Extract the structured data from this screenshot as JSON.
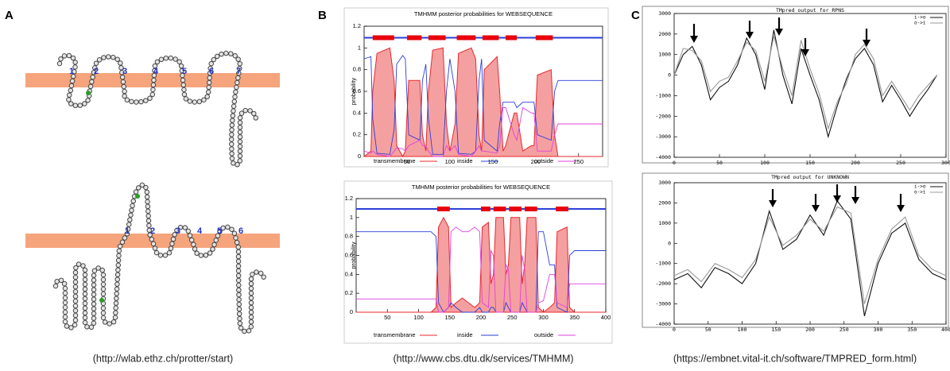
{
  "panels": {
    "A": {
      "label": "A",
      "caption": "(http://wlab.ethz.ch/protter/start)",
      "top_helices": [
        "1",
        "2",
        "3",
        "4",
        "5",
        "6",
        "7"
      ],
      "bottom_helices": [
        "1",
        "2",
        "3",
        "4",
        "5",
        "6"
      ]
    },
    "B": {
      "label": "B",
      "caption": "(http://www.cbs.dtu.dk/services/TMHMM)"
    },
    "C": {
      "label": "C",
      "caption": "(https://embnet.vital-it.ch/software/TMPRED_form.html)"
    }
  },
  "chart_data": [
    {
      "type": "line",
      "title": "TMHMM posterior probabilities for WEBSEQUENCE",
      "y_label": "probability",
      "legend": "bottom",
      "xlim": [
        0,
        278
      ],
      "xticks": [
        50,
        100,
        150,
        200,
        250
      ],
      "ylim": [
        0,
        1.2
      ],
      "yticks": [
        0,
        0.2,
        0.4,
        0.6,
        0.8,
        1,
        1.2
      ],
      "topology": [
        [
          10,
          35
        ],
        [
          50,
          67
        ],
        [
          75,
          95
        ],
        [
          108,
          130
        ],
        [
          138,
          157
        ],
        [
          165,
          178
        ],
        [
          200,
          220
        ]
      ],
      "x": [
        0,
        8,
        10,
        15,
        30,
        35,
        38,
        45,
        48,
        52,
        65,
        68,
        72,
        75,
        80,
        92,
        96,
        100,
        106,
        110,
        125,
        130,
        134,
        137,
        140,
        155,
        158,
        162,
        165,
        175,
        178,
        185,
        195,
        198,
        202,
        218,
        222,
        226,
        250,
        278
      ],
      "series": [
        {
          "name": "transmembrane",
          "color": "#e8282c",
          "filled": true,
          "values": [
            0,
            0.05,
            0.6,
            0.95,
            1.0,
            0.7,
            0.1,
            0,
            0.05,
            0.7,
            0.7,
            0.2,
            0.05,
            0.6,
            0.98,
            1.0,
            0.3,
            0.05,
            0.3,
            0.95,
            1.0,
            0.9,
            0.2,
            0.05,
            0.8,
            0.92,
            0.6,
            0.05,
            0.1,
            0.4,
            0.4,
            0.05,
            0.1,
            0.1,
            0.75,
            0.8,
            0.2,
            0,
            0,
            0
          ]
        },
        {
          "name": "inside",
          "color": "#2a3fd8",
          "values": [
            0.9,
            0.92,
            0.35,
            0.03,
            0.02,
            0.25,
            0.85,
            0.93,
            0.9,
            0.2,
            0.15,
            0.7,
            0.85,
            0.35,
            0.02,
            0.02,
            0.6,
            0.9,
            0.6,
            0.03,
            0.02,
            0.05,
            0.7,
            0.9,
            0.15,
            0.05,
            0.3,
            0.5,
            0.5,
            0.5,
            0.45,
            0.5,
            0.5,
            0.5,
            0.2,
            0.15,
            0.6,
            0.7,
            0.7,
            0.7
          ]
        },
        {
          "name": "outside",
          "color": "#e040e0",
          "values": [
            0.05,
            0.03,
            0.05,
            0.02,
            0,
            0.05,
            0.08,
            0.07,
            0.05,
            0.1,
            0.15,
            0.1,
            0.1,
            0.05,
            0,
            0,
            0.1,
            0.05,
            0.1,
            0.02,
            0,
            0.05,
            0.1,
            0.05,
            0.05,
            0.03,
            0.1,
            0.45,
            0.45,
            0.2,
            0.15,
            0.45,
            0.4,
            0.4,
            0.05,
            0.05,
            0.2,
            0.3,
            0.3,
            0.3
          ]
        }
      ]
    },
    {
      "type": "line",
      "title": "TMHMM posterior probabilities for WEBSEQUENCE",
      "y_label": "probability",
      "legend": "bottom",
      "xlim": [
        0,
        400
      ],
      "xticks": [
        50,
        100,
        150,
        200,
        250,
        300,
        350,
        400
      ],
      "ylim": [
        0,
        1.2
      ],
      "yticks": [
        0,
        0.2,
        0.4,
        0.6,
        0.8,
        1,
        1.2
      ],
      "topology": [
        [
          130,
          150
        ],
        [
          200,
          215
        ],
        [
          220,
          240
        ],
        [
          245,
          265
        ],
        [
          270,
          290
        ],
        [
          320,
          340
        ]
      ],
      "x": [
        0,
        50,
        100,
        120,
        128,
        132,
        140,
        148,
        152,
        160,
        170,
        180,
        190,
        198,
        202,
        212,
        216,
        220,
        224,
        236,
        240,
        244,
        248,
        262,
        266,
        270,
        274,
        288,
        292,
        300,
        310,
        318,
        322,
        338,
        342,
        350,
        400
      ],
      "series": [
        {
          "name": "transmembrane",
          "color": "#e8282c",
          "filled": true,
          "values": [
            0,
            0,
            0,
            0,
            0.05,
            0.9,
            1.0,
            0.9,
            0.05,
            0.1,
            0.15,
            0.1,
            0.05,
            0.1,
            0.9,
            0.95,
            0.3,
            0.4,
            1.0,
            1.0,
            0.4,
            0.5,
            1.0,
            1.0,
            0.3,
            0.5,
            1.0,
            1.0,
            0.05,
            0,
            0.05,
            0.1,
            0.85,
            0.9,
            0.05,
            0,
            0
          ]
        },
        {
          "name": "inside",
          "color": "#2a3fd8",
          "values": [
            0.85,
            0.85,
            0.85,
            0.85,
            0.8,
            0.1,
            0,
            0.05,
            0.1,
            0.05,
            0,
            0,
            0,
            0.05,
            0,
            0,
            0.05,
            0.05,
            0,
            0,
            0.1,
            0.05,
            0,
            0,
            0.1,
            0.05,
            0,
            0,
            0.85,
            0.85,
            0.5,
            0.5,
            0.05,
            0,
            0.6,
            0.65,
            0.65
          ]
        },
        {
          "name": "outside",
          "color": "#e040e0",
          "values": [
            0.14,
            0.14,
            0.14,
            0.14,
            0.14,
            0,
            0,
            0.05,
            0.85,
            0.9,
            0.85,
            0.85,
            0.9,
            0.85,
            0.1,
            0.05,
            0.65,
            0.6,
            0,
            0,
            0.5,
            0.45,
            0,
            0,
            0.6,
            0.45,
            0,
            0,
            0.1,
            0.12,
            0.4,
            0.4,
            0.1,
            0.05,
            0.3,
            0.3,
            0.3
          ]
        }
      ]
    },
    {
      "type": "line",
      "title": "TMpred output for RPNS",
      "legend": "upper right",
      "xlim": [
        0,
        300
      ],
      "xticks": [
        0,
        50,
        100,
        150,
        200,
        250,
        300
      ],
      "ylim": [
        -4000,
        3000
      ],
      "yticks": [
        -4000,
        -3000,
        -2000,
        -1000,
        0,
        1000,
        2000,
        3000
      ],
      "x": [
        0,
        10,
        20,
        30,
        40,
        50,
        60,
        70,
        80,
        90,
        100,
        110,
        120,
        130,
        140,
        150,
        160,
        170,
        180,
        190,
        200,
        210,
        220,
        230,
        240,
        250,
        260,
        270,
        280,
        290
      ],
      "series": [
        {
          "name": "i->o",
          "color": "#111111",
          "values": [
            0,
            1000,
            1400,
            500,
            -1200,
            -600,
            -300,
            500,
            1800,
            1000,
            -700,
            2200,
            0,
            -1400,
            1300,
            0,
            -1200,
            -3000,
            -1500,
            -200,
            800,
            1300,
            500,
            -1300,
            -500,
            -1200,
            -2000,
            -1300,
            -700,
            0
          ]
        },
        {
          "name": "o->i",
          "color": "#999999",
          "values": [
            0,
            1300,
            1200,
            700,
            -800,
            -300,
            -100,
            700,
            1600,
            1200,
            -300,
            1900,
            300,
            -1000,
            1700,
            300,
            -900,
            -2600,
            -1300,
            -400,
            1000,
            1500,
            800,
            -1000,
            -300,
            -1000,
            -1700,
            -1000,
            -500,
            0
          ]
        }
      ]
    },
    {
      "type": "line",
      "title": "TMpred output for UNKNOWN",
      "legend": "upper right",
      "xlim": [
        0,
        400
      ],
      "xticks": [
        0,
        50,
        100,
        150,
        200,
        250,
        300,
        350,
        400
      ],
      "ylim": [
        -4000,
        3000
      ],
      "yticks": [
        -4000,
        -3000,
        -2000,
        -1000,
        0,
        1000,
        2000,
        3000
      ],
      "x": [
        0,
        20,
        40,
        60,
        80,
        100,
        120,
        140,
        160,
        180,
        200,
        220,
        240,
        260,
        280,
        300,
        320,
        340,
        360,
        380,
        400
      ],
      "series": [
        {
          "name": "i->o",
          "color": "#111111",
          "values": [
            -1800,
            -1500,
            -2200,
            -1200,
            -1500,
            -2000,
            -1000,
            1600,
            -300,
            200,
            1400,
            400,
            2100,
            1200,
            -3600,
            -1000,
            500,
            1000,
            -800,
            -1500,
            -1800
          ]
        },
        {
          "name": "o->i",
          "color": "#999999",
          "values": [
            -1600,
            -1300,
            -1900,
            -1000,
            -1300,
            -1700,
            -800,
            1300,
            -100,
            400,
            1200,
            600,
            1800,
            1500,
            -3000,
            -800,
            700,
            1300,
            -600,
            -1300,
            -1600
          ]
        }
      ]
    }
  ]
}
